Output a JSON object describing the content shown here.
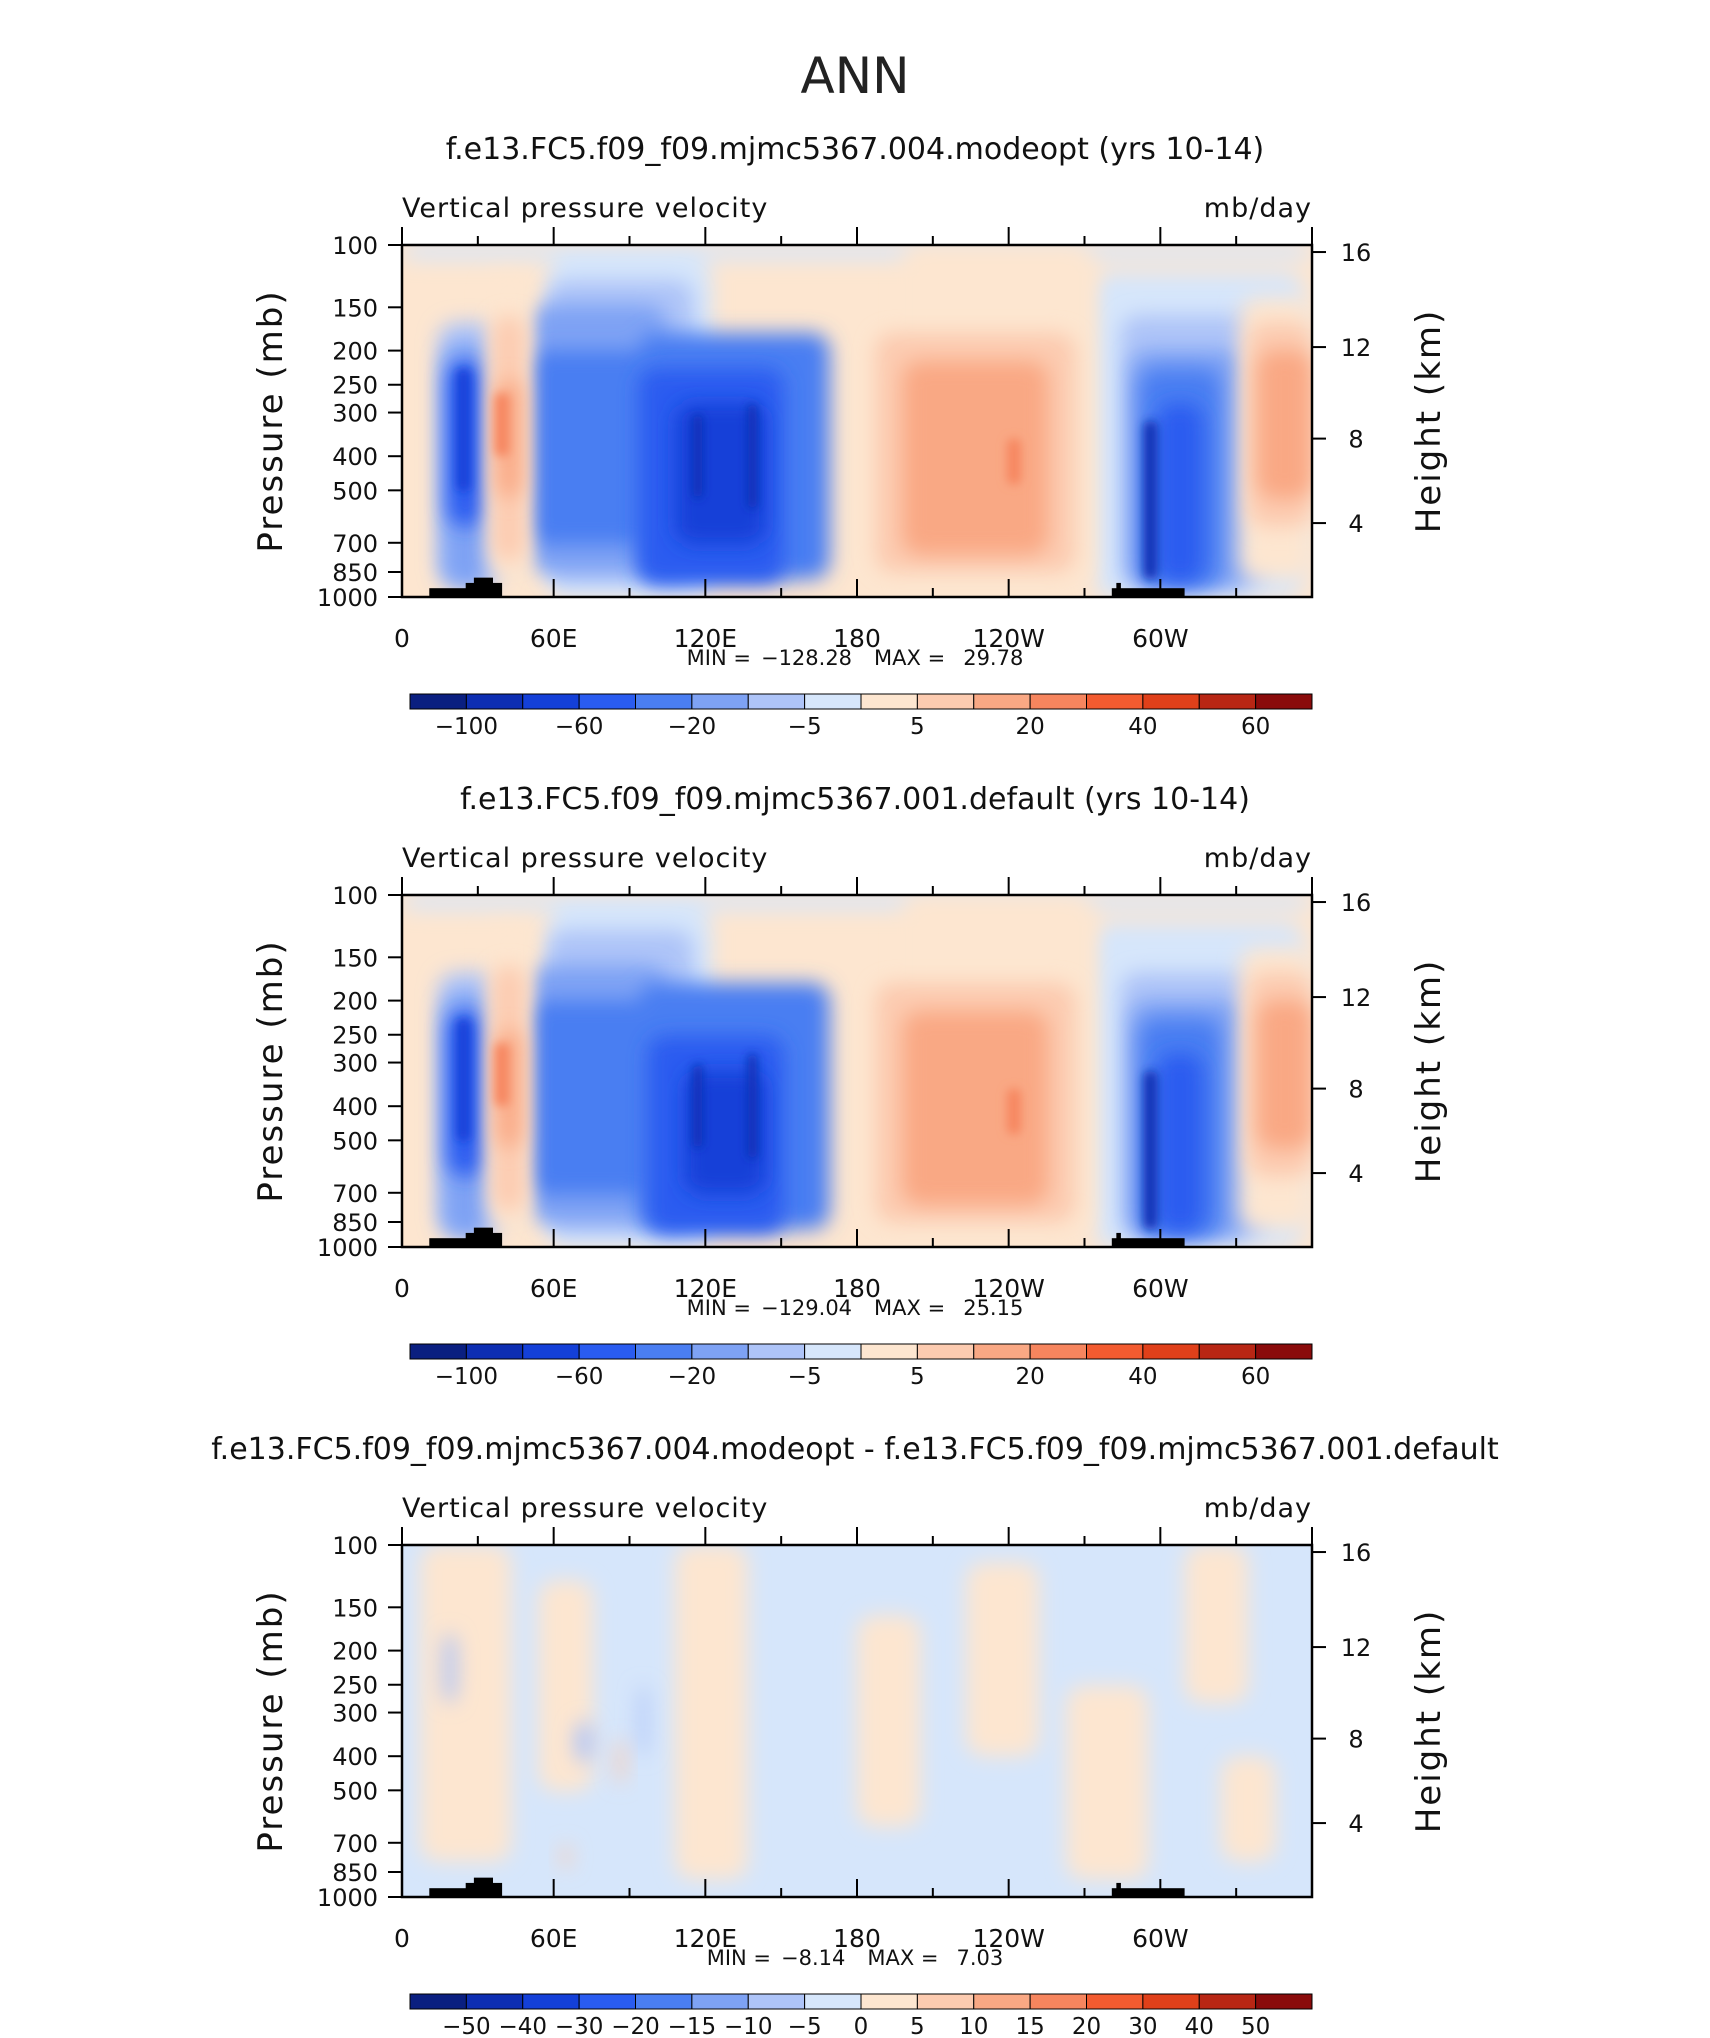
{
  "page_title": "ANN",
  "chart_data": [
    {
      "type": "heatmap",
      "title": "f.e13.FC5.f09_f09.mjmc5367.004.modeopt (yrs 10-14)",
      "left_label": "Vertical pressure velocity",
      "right_label": "mb/day",
      "ylabel": "Pressure (mb)",
      "ylabel_right": "Height (km)",
      "x_ticks": [
        "0",
        "60E",
        "120E",
        "180",
        "120W",
        "60W"
      ],
      "y_ticks": [
        "100",
        "150",
        "200",
        "250",
        "300",
        "400",
        "500",
        "700",
        "850",
        "1000"
      ],
      "y_right_ticks": [
        "16",
        "12",
        "8",
        "4"
      ],
      "stats": {
        "min_label": "MIN =",
        "min": "−128.28",
        "max_label": "MAX =",
        "max": "29.78"
      },
      "colorbar_labels": [
        "−100",
        "−60",
        "−20",
        "−5",
        "5",
        "20",
        "40",
        "60"
      ],
      "colorbar_colors": [
        "#0a1f80",
        "#0d2eb2",
        "#1440d8",
        "#2a5cf0",
        "#4a7ef2",
        "#7ea2f4",
        "#aec4f8",
        "#d6e6fb",
        "#fde6d0",
        "#fccbb0",
        "#f9a884",
        "#f6855e",
        "#f35b30",
        "#e0401a",
        "#b82614",
        "#8a0b0b"
      ],
      "field": "top"
    },
    {
      "type": "heatmap",
      "title": "f.e13.FC5.f09_f09.mjmc5367.001.default (yrs 10-14)",
      "left_label": "Vertical pressure velocity",
      "right_label": "mb/day",
      "ylabel": "Pressure (mb)",
      "ylabel_right": "Height (km)",
      "x_ticks": [
        "0",
        "60E",
        "120E",
        "180",
        "120W",
        "60W"
      ],
      "y_ticks": [
        "100",
        "150",
        "200",
        "250",
        "300",
        "400",
        "500",
        "700",
        "850",
        "1000"
      ],
      "y_right_ticks": [
        "16",
        "12",
        "8",
        "4"
      ],
      "stats": {
        "min_label": "MIN =",
        "min": "−129.04",
        "max_label": "MAX =",
        "max": "25.15"
      },
      "colorbar_labels": [
        "−100",
        "−60",
        "−20",
        "−5",
        "5",
        "20",
        "40",
        "60"
      ],
      "colorbar_colors": [
        "#0a1f80",
        "#0d2eb2",
        "#1440d8",
        "#2a5cf0",
        "#4a7ef2",
        "#7ea2f4",
        "#aec4f8",
        "#d6e6fb",
        "#fde6d0",
        "#fccbb0",
        "#f9a884",
        "#f6855e",
        "#f35b30",
        "#e0401a",
        "#b82614",
        "#8a0b0b"
      ],
      "field": "mid"
    },
    {
      "type": "heatmap",
      "title": "f.e13.FC5.f09_f09.mjmc5367.004.modeopt - f.e13.FC5.f09_f09.mjmc5367.001.default",
      "left_label": "Vertical pressure velocity",
      "right_label": "mb/day",
      "ylabel": "Pressure (mb)",
      "ylabel_right": "Height (km)",
      "x_ticks": [
        "0",
        "60E",
        "120E",
        "180",
        "120W",
        "60W"
      ],
      "y_ticks": [
        "100",
        "150",
        "200",
        "250",
        "300",
        "400",
        "500",
        "700",
        "850",
        "1000"
      ],
      "y_right_ticks": [
        "16",
        "12",
        "8",
        "4"
      ],
      "stats": {
        "min_label": "MIN =",
        "min": "−8.14",
        "max_label": "MAX =",
        "max": "7.03"
      },
      "colorbar_labels": [
        "−50",
        "−40",
        "−30",
        "−20",
        "−15",
        "−10",
        "−5",
        "0",
        "5",
        "10",
        "15",
        "20",
        "30",
        "40",
        "50"
      ],
      "colorbar_colors": [
        "#0a1f80",
        "#0d2eb2",
        "#1440d8",
        "#2a5cf0",
        "#4a7ef2",
        "#7ea2f4",
        "#aec4f8",
        "#d6e6fb",
        "#fde6d0",
        "#fccbb0",
        "#f9a884",
        "#f6855e",
        "#f35b30",
        "#e0401a",
        "#b82614",
        "#8a0b0b"
      ],
      "field": "diff"
    }
  ]
}
